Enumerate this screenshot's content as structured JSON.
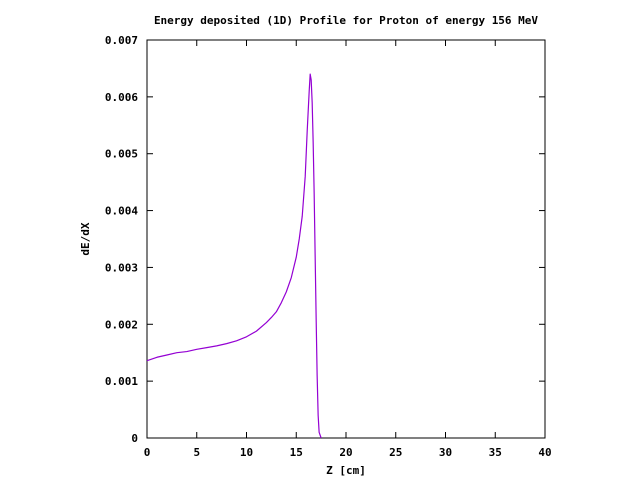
{
  "chart_data": {
    "type": "line",
    "title": "Energy deposited (1D) Profile for Proton of energy 156 MeV",
    "xlabel": "Z [cm]",
    "ylabel": "dE/dX",
    "xlim": [
      0,
      40
    ],
    "ylim": [
      0,
      0.007
    ],
    "x_ticks": [
      0,
      5,
      10,
      15,
      20,
      25,
      30,
      35,
      40
    ],
    "x_tick_labels": [
      "0",
      "5",
      "10",
      "15",
      "20",
      "25",
      "30",
      "35",
      "40"
    ],
    "y_ticks": [
      0,
      0.001,
      0.002,
      0.003,
      0.004,
      0.005,
      0.006,
      0.007
    ],
    "y_tick_labels": [
      "0",
      "0.001",
      "0.002",
      "0.003",
      "0.004",
      "0.005",
      "0.006",
      "0.007"
    ],
    "grid": false,
    "series": [
      {
        "color": "#9400d3",
        "x": [
          0,
          1,
          2,
          3,
          4,
          5,
          6,
          7,
          8,
          9,
          10,
          11,
          12,
          12.5,
          13,
          13.5,
          14,
          14.5,
          15,
          15.3,
          15.6,
          15.9,
          16.1,
          16.3,
          16.4,
          16.5,
          16.6,
          16.7,
          16.8,
          16.9,
          17.0,
          17.1,
          17.2,
          17.3,
          17.5
        ],
        "y": [
          0.00136,
          0.00142,
          0.00146,
          0.0015,
          0.00152,
          0.00156,
          0.00159,
          0.00162,
          0.00166,
          0.00171,
          0.00178,
          0.00188,
          0.00203,
          0.00212,
          0.00222,
          0.00238,
          0.00257,
          0.00282,
          0.00318,
          0.0035,
          0.0039,
          0.0046,
          0.0054,
          0.0061,
          0.0064,
          0.0063,
          0.0059,
          0.0052,
          0.0043,
          0.0032,
          0.0021,
          0.0011,
          0.0004,
          0.0001,
          0
        ]
      }
    ]
  }
}
